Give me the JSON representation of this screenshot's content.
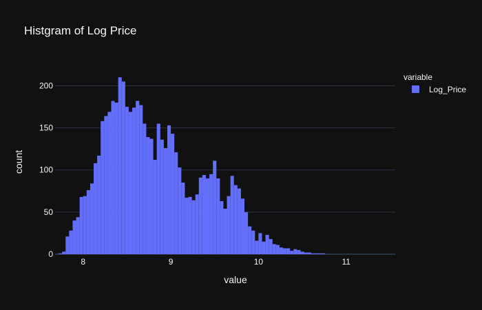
{
  "chart_data": {
    "type": "bar",
    "title": "Histgram of Log Price",
    "xlabel": "value",
    "ylabel": "count",
    "xlim": [
      7.68,
      11.56
    ],
    "ylim": [
      0,
      220
    ],
    "xticks": [
      8,
      9,
      10,
      11
    ],
    "yticks": [
      0,
      50,
      100,
      150,
      200
    ],
    "grid": true,
    "legend": {
      "title": "variable",
      "position": "top-right"
    },
    "colors": {
      "bar": "#636efa",
      "background": "#111111",
      "grid": "#283442",
      "text": "#f2f5fa"
    },
    "bin_size": 0.04,
    "series": [
      {
        "name": "Log_Price",
        "bin_starts": [
          7.72,
          7.76,
          7.8,
          7.84,
          7.88,
          7.92,
          7.96,
          8.0,
          8.04,
          8.08,
          8.12,
          8.16,
          8.2,
          8.24,
          8.28,
          8.32,
          8.36,
          8.4,
          8.44,
          8.48,
          8.52,
          8.56,
          8.6,
          8.64,
          8.68,
          8.72,
          8.76,
          8.8,
          8.84,
          8.88,
          8.92,
          8.96,
          9.0,
          9.04,
          9.08,
          9.12,
          9.16,
          9.2,
          9.24,
          9.28,
          9.32,
          9.36,
          9.4,
          9.44,
          9.48,
          9.52,
          9.56,
          9.6,
          9.64,
          9.68,
          9.72,
          9.76,
          9.8,
          9.84,
          9.88,
          9.92,
          9.96,
          10.0,
          10.04,
          10.08,
          10.12,
          10.16,
          10.2,
          10.24,
          10.28,
          10.32,
          10.36,
          10.4,
          10.44,
          10.48,
          10.52,
          10.56,
          10.6,
          10.64,
          10.68,
          10.72,
          10.76,
          10.8,
          10.84,
          10.88,
          10.92,
          10.96,
          11.0,
          11.04,
          11.08,
          11.12,
          11.16,
          11.2,
          11.24,
          11.28,
          11.32,
          11.36,
          11.4,
          11.44,
          11.48,
          11.52
        ],
        "values": [
          1,
          3,
          21,
          28,
          40,
          44,
          68,
          69,
          76,
          84,
          108,
          117,
          158,
          164,
          169,
          182,
          180,
          210,
          205,
          175,
          169,
          174,
          182,
          177,
          155,
          139,
          137,
          112,
          155,
          136,
          126,
          153,
          143,
          121,
          103,
          85,
          67,
          68,
          64,
          71,
          91,
          94,
          90,
          95,
          111,
          90,
          63,
          54,
          69,
          93,
          82,
          78,
          66,
          50,
          33,
          28,
          16,
          25,
          15,
          23,
          18,
          12,
          11,
          8,
          7,
          7,
          4,
          6,
          5,
          3,
          2,
          2,
          1,
          1,
          1,
          1,
          0,
          0,
          0,
          0,
          0,
          0,
          0,
          0,
          0,
          0,
          0,
          0,
          0,
          0,
          0,
          0,
          0,
          0,
          0,
          0
        ]
      }
    ]
  }
}
